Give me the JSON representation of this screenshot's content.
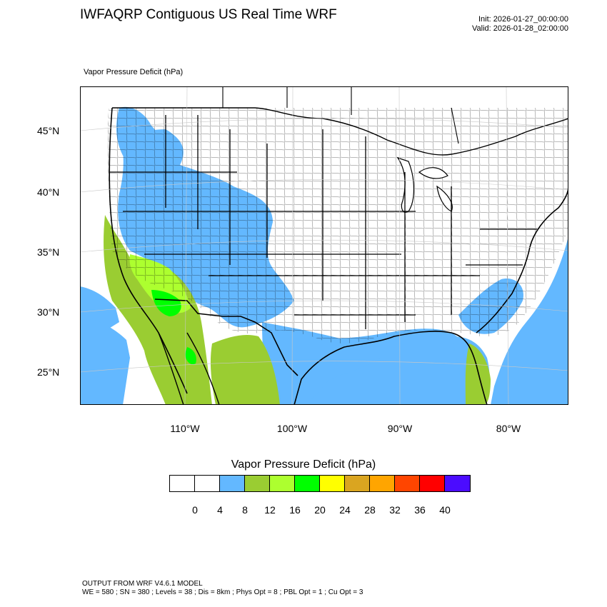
{
  "header": {
    "title": "IWFAQRP Contiguous US Real Time WRF",
    "init": "Init: 2026-01-27_00:00:00",
    "valid": "Valid: 2026-01-28_02:00:00"
  },
  "field_label": "Vapor Pressure Deficit   (hPa)",
  "map": {
    "lat_labels": [
      "45°N",
      "40°N",
      "35°N",
      "30°N",
      "25°N"
    ],
    "lon_labels": [
      "110°W",
      "100°W",
      "90°W",
      "80°W"
    ],
    "colors": {
      "ocean": "#63b8ff",
      "land_blue": "#63b8ff",
      "land_olive": "#9acd32",
      "land_light_green": "#adff2f",
      "land_green": "#00ff00"
    }
  },
  "colorbar": {
    "title": "Vapor Pressure Deficit  (hPa)",
    "colors": [
      "#ffffff",
      "#ffffff",
      "#63b8ff",
      "#9acd32",
      "#adff2f",
      "#00ff00",
      "#ffff00",
      "#daa520",
      "#ffa500",
      "#ff4500",
      "#ff0000",
      "#4b0cff"
    ],
    "labels": [
      "0",
      "4",
      "8",
      "12",
      "16",
      "20",
      "24",
      "28",
      "32",
      "36",
      "40"
    ]
  },
  "footer": {
    "line1": "OUTPUT FROM WRF V4.6.1 MODEL",
    "line2": "WE = 580 ; SN = 380 ; Levels = 38 ; Dis = 8km ; Phys Opt = 8 ; PBL Opt = 1 ; Cu Opt = 3"
  }
}
